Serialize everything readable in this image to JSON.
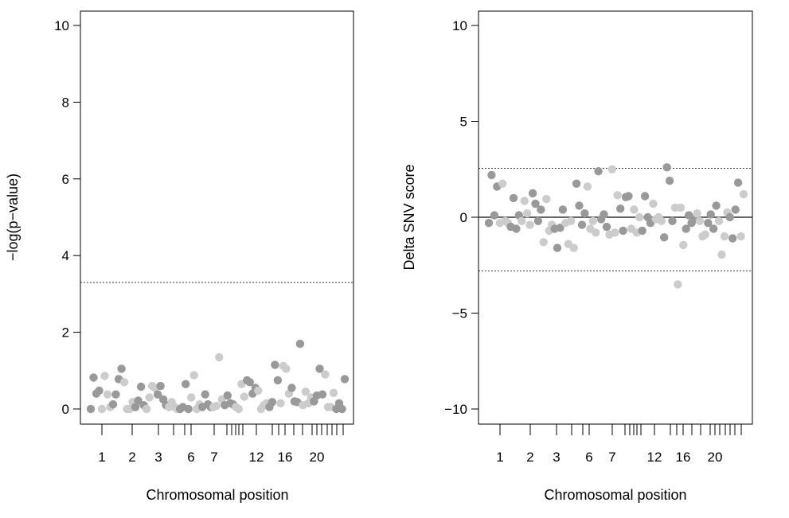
{
  "chart_data": [
    {
      "type": "scatter",
      "title": "",
      "xlabel": "Chromosomal position",
      "ylabel": "−log(p−value)",
      "ylim": [
        0,
        10
      ],
      "yticks": [
        0,
        2,
        4,
        6,
        8,
        10
      ],
      "ytick_labels": [
        "0",
        "2",
        "4",
        "6",
        "8",
        "10"
      ],
      "grid": false,
      "threshold_lines": [
        {
          "y": 3.3,
          "style": "dotted"
        }
      ],
      "x_chromosome_labels": [
        {
          "chromosome": 1,
          "label": "1"
        },
        {
          "chromosome": 2,
          "label": "2"
        },
        {
          "chromosome": 3,
          "label": "3"
        },
        {
          "chromosome": 6,
          "label": "6"
        },
        {
          "chromosome": 7,
          "label": "7"
        },
        {
          "chromosome": 12,
          "label": "12"
        },
        {
          "chromosome": 16,
          "label": "16"
        },
        {
          "chromosome": 20,
          "label": "20"
        }
      ],
      "point_colors": [
        "#999999",
        "#cccccc"
      ],
      "y": [
        0.0,
        0.82,
        0.4,
        0.48,
        0.0,
        0.86,
        0.38,
        0.05,
        0.12,
        0.38,
        0.78,
        1.05,
        0.7,
        0.0,
        0.0,
        0.18,
        0.05,
        0.22,
        0.58,
        0.1,
        0.0,
        0.3,
        0.6,
        0.55,
        0.38,
        0.6,
        0.25,
        0.1,
        0.05,
        0.18,
        0.05,
        0.0,
        0.0,
        0.05,
        0.65,
        0.0,
        0.3,
        0.88,
        0.0,
        0.12,
        0.05,
        0.38,
        0.12,
        0.05,
        0.05,
        0.08,
        1.35,
        0.25,
        0.1,
        0.35,
        0.15,
        0.12,
        0.05,
        0.0,
        0.65,
        0.32,
        0.75,
        0.7,
        0.4,
        0.55,
        0.48,
        0.0,
        0.1,
        0.15,
        0.05,
        0.18,
        1.15,
        0.75,
        0.15,
        1.12,
        1.05,
        0.4,
        0.55,
        0.2,
        0.18,
        1.7,
        0.1,
        0.45,
        0.15,
        0.3,
        0.2,
        0.35,
        1.05,
        0.38,
        0.9,
        0.05,
        0.05,
        0.42,
        0.0,
        0.15,
        0.0,
        0.78
      ]
    },
    {
      "type": "scatter",
      "title": "",
      "xlabel": "Chromosomal position",
      "ylabel": "Delta SNV score",
      "ylim": [
        -10,
        10
      ],
      "yticks": [
        -10,
        -5,
        0,
        5,
        10
      ],
      "ytick_labels": [
        "−10",
        "−5",
        "0",
        "5",
        "10"
      ],
      "grid": false,
      "threshold_lines": [
        {
          "y": 2.55,
          "style": "dotted"
        },
        {
          "y": -2.8,
          "style": "dotted"
        },
        {
          "y": 0,
          "style": "solid"
        }
      ],
      "x_chromosome_labels": [
        {
          "chromosome": 1,
          "label": "1"
        },
        {
          "chromosome": 2,
          "label": "2"
        },
        {
          "chromosome": 3,
          "label": "3"
        },
        {
          "chromosome": 6,
          "label": "6"
        },
        {
          "chromosome": 7,
          "label": "7"
        },
        {
          "chromosome": 12,
          "label": "12"
        },
        {
          "chromosome": 16,
          "label": "16"
        },
        {
          "chromosome": 20,
          "label": "20"
        }
      ],
      "point_colors": [
        "#999999",
        "#cccccc"
      ],
      "y": [
        -0.3,
        2.2,
        0.1,
        1.6,
        -0.3,
        1.75,
        -0.2,
        -0.3,
        -0.5,
        1.0,
        -0.6,
        0.1,
        -0.2,
        0.85,
        0.2,
        -0.4,
        1.25,
        0.7,
        -0.2,
        0.4,
        -1.3,
        0.95,
        -0.7,
        -0.4,
        -0.6,
        -1.6,
        -0.55,
        0.4,
        -0.3,
        -1.4,
        -0.2,
        -1.6,
        1.75,
        0.6,
        -0.4,
        0.2,
        1.6,
        -0.6,
        -0.2,
        -0.8,
        2.4,
        -0.1,
        0.15,
        -0.5,
        -0.9,
        2.5,
        -0.8,
        1.15,
        0.45,
        -0.7,
        1.05,
        1.1,
        -0.6,
        0.4,
        -0.8,
        0.0,
        -0.7,
        1.1,
        0.0,
        -0.3,
        0.7,
        -0.1,
        0.0,
        -0.2,
        -1.05,
        2.6,
        1.9,
        -0.2,
        0.5,
        -3.5,
        0.5,
        -1.45,
        -0.6,
        0.1,
        -0.3,
        -0.1,
        0.2,
        -0.2,
        -1.0,
        -0.9,
        -0.3,
        0.15,
        -0.6,
        0.6,
        -0.2,
        -1.95,
        -1.0,
        0.25,
        0.0,
        -1.1,
        0.4,
        1.8,
        -1.0,
        1.2
      ]
    }
  ]
}
